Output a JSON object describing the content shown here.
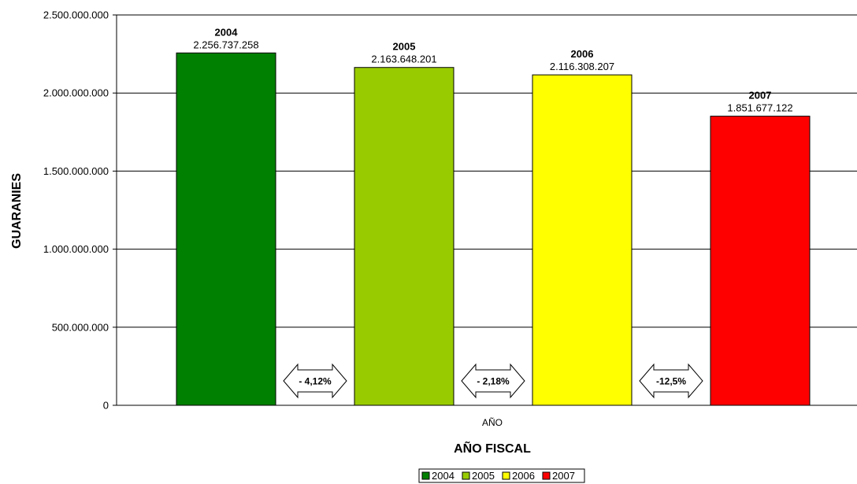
{
  "chart_data": {
    "type": "bar",
    "categories": [
      "AÑO"
    ],
    "series": [
      {
        "name": "2004",
        "value": 2256737258,
        "value_label": "2.256.737.258",
        "color": "#008000"
      },
      {
        "name": "2005",
        "value": 2163648201,
        "value_label": "2.163.648.201",
        "color": "#99CC00"
      },
      {
        "name": "2006",
        "value": 2116308207,
        "value_label": "2.116.308.207",
        "color": "#FFFF00"
      },
      {
        "name": "2007",
        "value": 1851677122,
        "value_label": "1.851.677.122",
        "color": "#FF0000"
      }
    ],
    "xlabel": "AÑO FISCAL",
    "ylabel": "GUARANIES",
    "ylim": [
      0,
      2500000000
    ],
    "yticks": [
      {
        "value": 0,
        "label": "0"
      },
      {
        "value": 500000000,
        "label": "500.000.000"
      },
      {
        "value": 1000000000,
        "label": "1.000.000.000"
      },
      {
        "value": 1500000000,
        "label": "1.500.000.000"
      },
      {
        "value": 2000000000,
        "label": "2.000.000.000"
      },
      {
        "value": 2500000000,
        "label": "2.500.000.000"
      }
    ],
    "changes": [
      "- 4,12%",
      "- 2,18%",
      "-12,5%"
    ],
    "grid": true,
    "legend_position": "bottom"
  }
}
